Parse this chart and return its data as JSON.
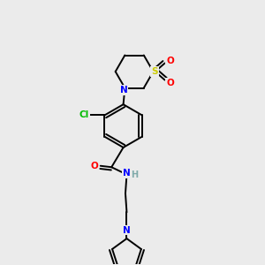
{
  "background_color": "#ebebeb",
  "line_color": "#000000",
  "atom_colors": {
    "N": "#0000ff",
    "O": "#ff0000",
    "S": "#cccc00",
    "Cl": "#00bb00",
    "H": "#7faaaa",
    "C": "#000000"
  },
  "figsize": [
    3.0,
    3.0
  ],
  "dpi": 100
}
